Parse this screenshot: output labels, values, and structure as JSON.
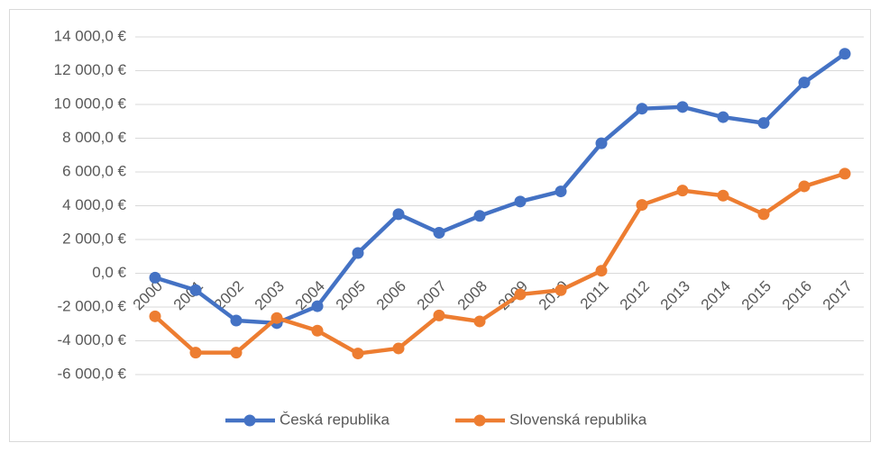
{
  "chart_data": {
    "type": "line",
    "categories": [
      "2000",
      "2001",
      "2002",
      "2003",
      "2004",
      "2005",
      "2006",
      "2007",
      "2008",
      "2009",
      "2010",
      "2011",
      "2012",
      "2013",
      "2014",
      "2015",
      "2016",
      "2017"
    ],
    "series": [
      {
        "name": "Česká republika",
        "color": "#4472c4",
        "values": [
          -260,
          -1000,
          -2800,
          -2950,
          -1950,
          1200,
          3500,
          2400,
          3400,
          4250,
          4850,
          7700,
          9750,
          9850,
          9250,
          8900,
          11300,
          13000
        ]
      },
      {
        "name": "Slovenská republika",
        "color": "#ed7d31",
        "values": [
          -2550,
          -4700,
          -4700,
          -2650,
          -3400,
          -4750,
          -4450,
          -2500,
          -2850,
          -1250,
          -1000,
          150,
          4050,
          4900,
          4600,
          3500,
          5150,
          5900
        ]
      }
    ],
    "ylim": [
      -6000,
      14000
    ],
    "yticks": [
      {
        "value": -6000,
        "label": "-6 000,0 €"
      },
      {
        "value": -4000,
        "label": "-4 000,0 €"
      },
      {
        "value": -2000,
        "label": "-2 000,0 €"
      },
      {
        "value": 0,
        "label": "0,0 €"
      },
      {
        "value": 2000,
        "label": "2 000,0 €"
      },
      {
        "value": 4000,
        "label": "4 000,0 €"
      },
      {
        "value": 6000,
        "label": "6 000,0 €"
      },
      {
        "value": 8000,
        "label": "8 000,0 €"
      },
      {
        "value": 10000,
        "label": "10 000,0 €"
      },
      {
        "value": 12000,
        "label": "12 000,0 €"
      },
      {
        "value": 14000,
        "label": "14 000,0 €"
      }
    ],
    "grid": true,
    "legend": "bottom"
  }
}
